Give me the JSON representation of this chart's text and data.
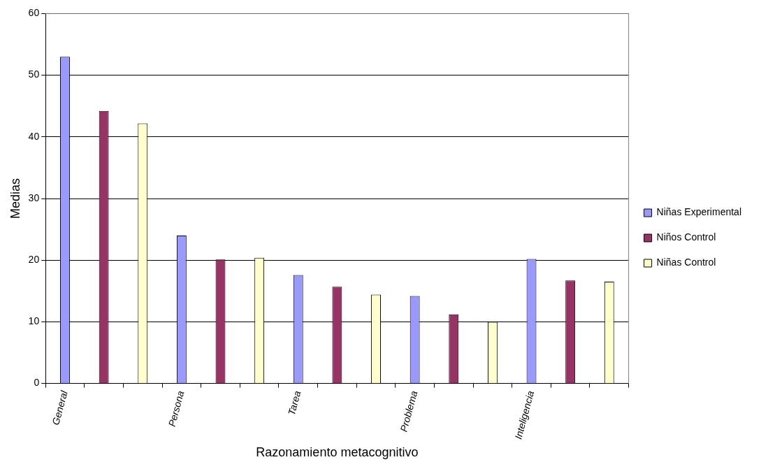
{
  "chart_data": {
    "type": "bar",
    "xlabel": "Razonamiento metacognitivo",
    "ylabel": "Medias",
    "categories": [
      "General",
      null,
      null,
      "Persona",
      null,
      null,
      "Tarea",
      null,
      null,
      "Problema",
      null,
      null,
      "Inteligencia",
      null,
      null
    ],
    "series": [
      {
        "name": "Niñas Experimental",
        "color": "#9999ff",
        "values": [
          53,
          null,
          null,
          24,
          null,
          null,
          17.6,
          null,
          null,
          14.2,
          null,
          null,
          20.2,
          null,
          null
        ]
      },
      {
        "name": "Niños Control",
        "color": "#993366",
        "values": [
          null,
          44.2,
          null,
          null,
          20.1,
          null,
          null,
          15.7,
          null,
          null,
          11.2,
          null,
          null,
          16.7,
          null
        ]
      },
      {
        "name": "Niñas Control",
        "color": "#ffffcc",
        "values": [
          null,
          null,
          42.2,
          null,
          null,
          20.4,
          null,
          null,
          14.4,
          null,
          null,
          10,
          null,
          null,
          16.5
        ]
      }
    ],
    "ylim": [
      0,
      60
    ],
    "yticks": [
      0,
      10,
      20,
      30,
      40,
      50,
      60
    ],
    "grid": "y",
    "legend": "right"
  }
}
